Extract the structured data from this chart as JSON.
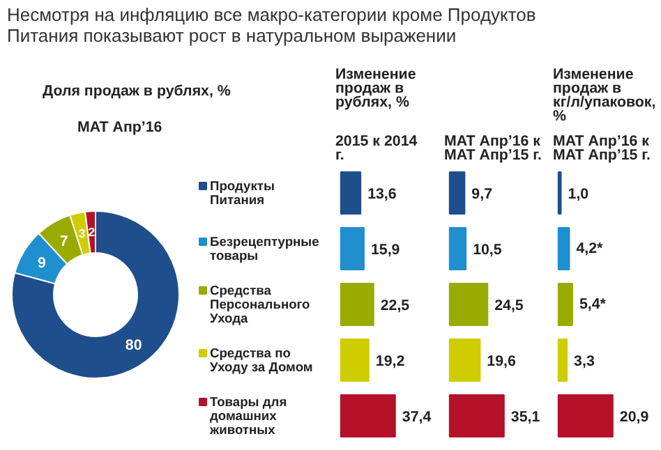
{
  "chart_data": [
    {
      "type": "donut",
      "title": "Несмотря на инфляцию все макро-категории кроме Продуктов Питания показывают рост в натуральном выражении",
      "subtitle": "Доля продаж в рублях, %",
      "annotations": [
        "MAT Апр’16"
      ],
      "categories": [
        "Продукты Питания",
        "Безрецептурные товары",
        "Средства Персонального Ухода",
        "Средства по Уходу за Домом",
        "Товары для домашних животных"
      ],
      "values": [
        80,
        9,
        7,
        3,
        2
      ],
      "colors": [
        "#1f4e8c",
        "#1f8fcf",
        "#9aab00",
        "#cfcc00",
        "#b5122a"
      ],
      "data_labels": true,
      "legend": "right"
    },
    {
      "type": "bar",
      "orientation": "horizontal",
      "title": "Изменение продаж в рублях, %",
      "subtitle": "2015 к 2014 г.",
      "categories": [
        null,
        null,
        null,
        null,
        null
      ],
      "values": [
        13.6,
        15.9,
        22.5,
        19.2,
        37.4
      ],
      "value_labels": [
        "13,6",
        "15,9",
        "22,5",
        "19,2",
        "37,4"
      ],
      "colors": [
        "#1f4e8c",
        "#1f8fcf",
        "#9aab00",
        "#cfcc00",
        "#b5122a"
      ]
    },
    {
      "type": "bar",
      "orientation": "horizontal",
      "subtitle": "MAT Апр’16 к MAT Апр’15 г.",
      "categories": [
        null,
        null,
        null,
        null,
        null
      ],
      "values": [
        9.7,
        10.5,
        24.5,
        19.6,
        35.1
      ],
      "value_labels": [
        "9,7",
        "10,5",
        "24,5",
        "19,6",
        "35,1"
      ],
      "colors": [
        "#1f4e8c",
        "#1f8fcf",
        "#9aab00",
        "#cfcc00",
        "#b5122a"
      ]
    },
    {
      "type": "bar",
      "orientation": "horizontal",
      "title": "Изменение продаж в кг/л/упаковок, %",
      "subtitle": "MAT Апр’16 к MAT Апр’15 г.",
      "categories": [
        null,
        null,
        null,
        null,
        null
      ],
      "values": [
        1.0,
        4.2,
        5.4,
        3.3,
        20.9
      ],
      "value_labels": [
        "1,0",
        "4,2*",
        "5,4*",
        "3,3",
        "20,9"
      ],
      "colors": [
        "#1f4e8c",
        "#1f8fcf",
        "#9aab00",
        "#cfcc00",
        "#b5122a"
      ]
    }
  ]
}
